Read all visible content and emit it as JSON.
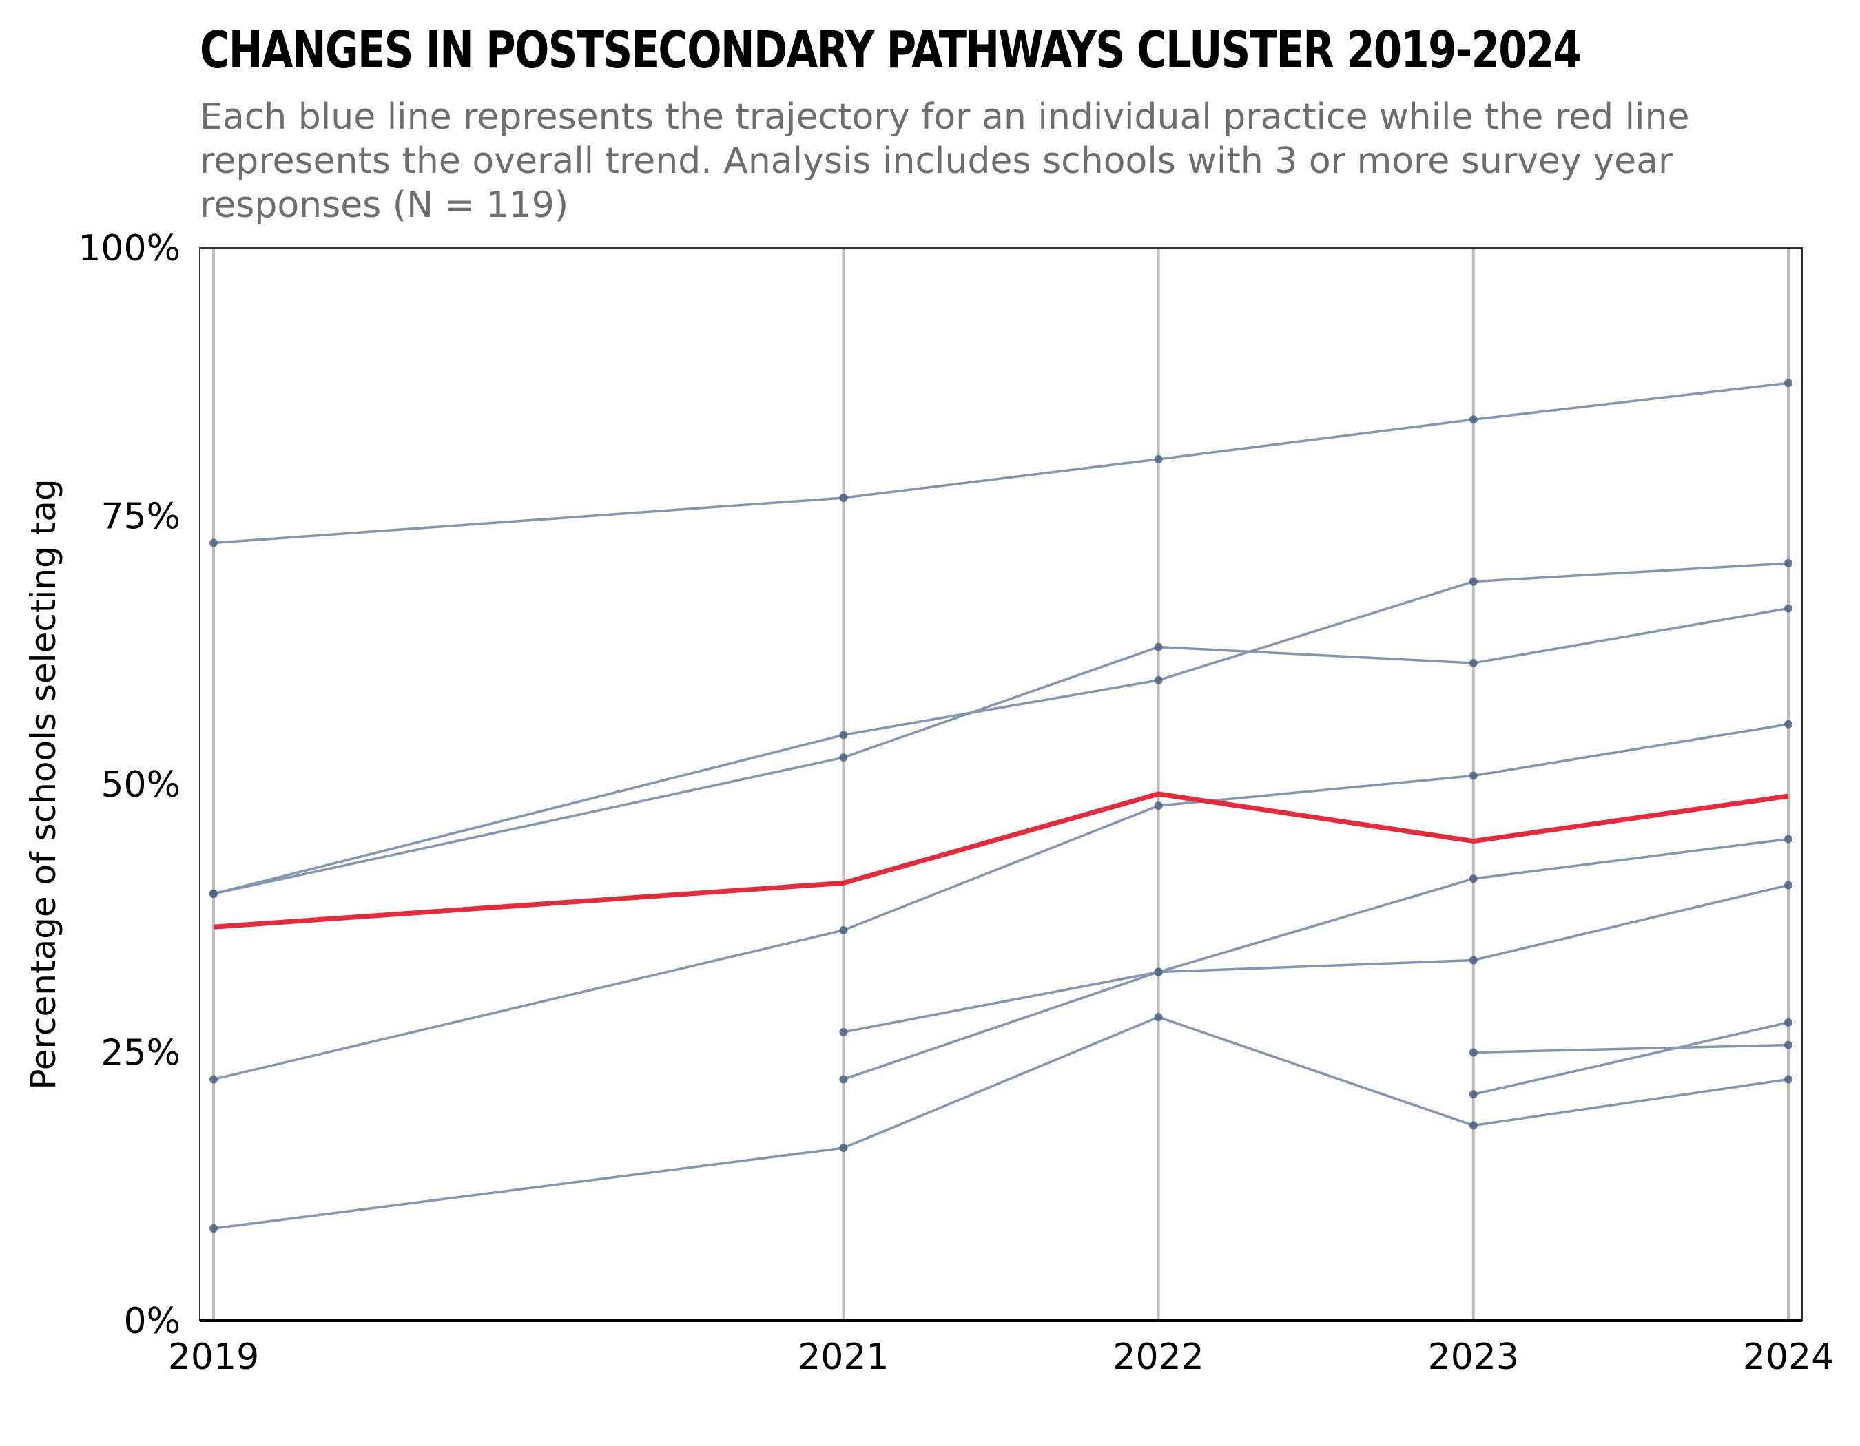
{
  "title": "CHANGES IN POSTSECONDARY PATHWAYS CLUSTER 2019-2024",
  "subtitle": "Each blue line represents the trajectory for an individual practice while the red line represents the overall trend. Analysis includes schools with 3 or more survey year responses (N = 119)",
  "colors": {
    "practice_line": "#8396b0",
    "practice_point": "#4a6285",
    "trend_line": "#e22c3c",
    "gridline": "#bdbdbd"
  },
  "chart_data": {
    "type": "line",
    "ylabel": "Percentage of schools selecting tag",
    "xlabel": "",
    "x_ticks": [
      "2019",
      "2021",
      "2022",
      "2023",
      "2024"
    ],
    "y_ticks": [
      "0%",
      "25%",
      "50%",
      "75%",
      "100%"
    ],
    "xlim": [
      2019,
      2024
    ],
    "ylim": [
      0,
      100
    ],
    "grid": "vertical lines at each survey year",
    "series": [
      {
        "role": "practice",
        "points": [
          [
            2019,
            72.5
          ],
          [
            2021,
            76.7
          ],
          [
            2022,
            80.3
          ],
          [
            2023,
            84.0
          ],
          [
            2024,
            87.4
          ]
        ]
      },
      {
        "role": "practice",
        "points": [
          [
            2019,
            39.8
          ],
          [
            2021,
            54.6
          ],
          [
            2022,
            59.7
          ],
          [
            2023,
            68.9
          ],
          [
            2024,
            70.6
          ]
        ]
      },
      {
        "role": "practice",
        "points": [
          [
            2019,
            39.8
          ],
          [
            2021,
            52.5
          ],
          [
            2022,
            62.8
          ],
          [
            2023,
            61.3
          ],
          [
            2024,
            66.4
          ]
        ]
      },
      {
        "role": "practice",
        "points": [
          [
            2019,
            22.5
          ],
          [
            2021,
            36.4
          ],
          [
            2022,
            48.0
          ],
          [
            2023,
            50.8
          ],
          [
            2024,
            55.6
          ]
        ]
      },
      {
        "role": "practice",
        "points": [
          [
            2019,
            8.6
          ],
          [
            2021,
            16.1
          ],
          [
            2022,
            28.3
          ],
          [
            2023,
            18.2
          ],
          [
            2024,
            22.5
          ]
        ]
      },
      {
        "role": "practice",
        "points": [
          [
            2021,
            26.9
          ],
          [
            2022,
            32.5
          ],
          [
            2023,
            33.6
          ],
          [
            2024,
            40.6
          ]
        ]
      },
      {
        "role": "practice",
        "points": [
          [
            2021,
            22.5
          ],
          [
            2022,
            32.5
          ],
          [
            2023,
            41.2
          ],
          [
            2024,
            44.9
          ]
        ]
      },
      {
        "role": "practice",
        "points": [
          [
            2023,
            25.0
          ],
          [
            2024,
            25.7
          ]
        ]
      },
      {
        "role": "practice",
        "points": [
          [
            2023,
            21.1
          ],
          [
            2024,
            27.8
          ]
        ]
      },
      {
        "role": "overall",
        "points": [
          [
            2019,
            36.7
          ],
          [
            2021,
            40.8
          ],
          [
            2022,
            49.1
          ],
          [
            2023,
            44.7
          ],
          [
            2024,
            48.9
          ]
        ]
      }
    ]
  }
}
